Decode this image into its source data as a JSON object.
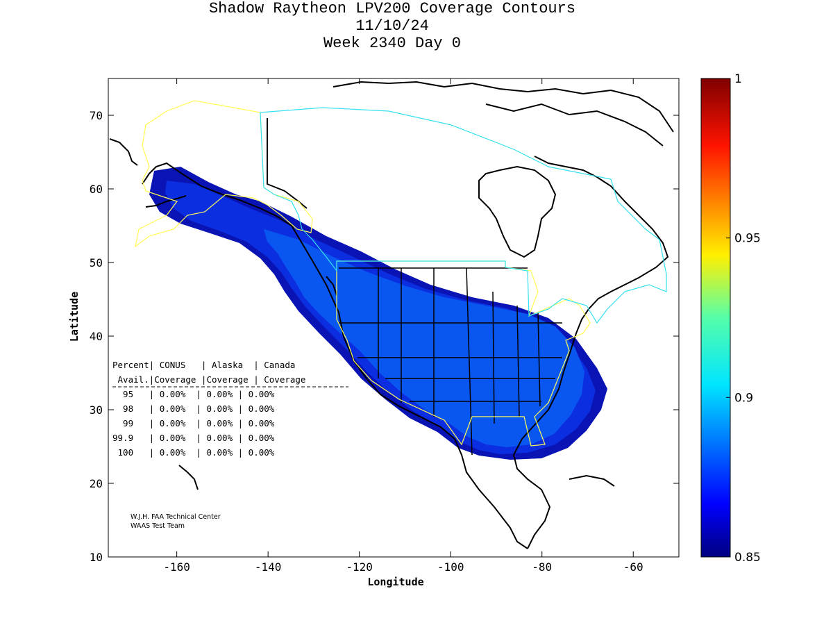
{
  "title": {
    "line1": "Shadow Raytheon LPV200 Coverage Contours",
    "line2": "11/10/24",
    "line3": "Week 2340 Day 0"
  },
  "axes": {
    "xlabel": "Longitude",
    "ylabel": "Latitude",
    "x_ticks": [
      "-160",
      "-140",
      "-120",
      "-100",
      "-80",
      "-60"
    ],
    "y_ticks": [
      "70",
      "60",
      "50",
      "40",
      "30",
      "20",
      "10"
    ]
  },
  "colorbar": {
    "ticks": [
      "1",
      "0.95",
      "0.9",
      "0.85"
    ],
    "min": 0.85,
    "max": 1
  },
  "stats_table": {
    "header1": "Percent| CONUS   | Alaska  | Canada",
    "header2": " Avail.|Coverage |Coverage | Coverage",
    "rows": [
      "  95   | 0.00%  | 0.00% | 0.00%",
      "  98   | 0.00%  | 0.00% | 0.00%",
      "  99   | 0.00%  | 0.00% | 0.00%",
      "99.9   | 0.00%  | 0.00% | 0.00%",
      " 100   | 0.00%  | 0.00% | 0.00%"
    ]
  },
  "credits": {
    "line1": "W.J.H. FAA Technical Center",
    "line2": "WAAS Test Team"
  },
  "colors": {
    "band_dark": "#0a14b4",
    "band_mid": "#0b2ee0",
    "band_light": "#0a56f0",
    "coast": "#000000",
    "conus_boundary": "#ffff55",
    "canada_boundary": "#33e0f0"
  },
  "chart_data": {
    "type": "contour-map",
    "title": "Shadow Raytheon LPV200 Coverage Contours",
    "xlabel": "Longitude",
    "ylabel": "Latitude",
    "xlim": [
      -175,
      -50
    ],
    "ylim": [
      10,
      75
    ],
    "colorbar_range": [
      0.85,
      1
    ]
  }
}
